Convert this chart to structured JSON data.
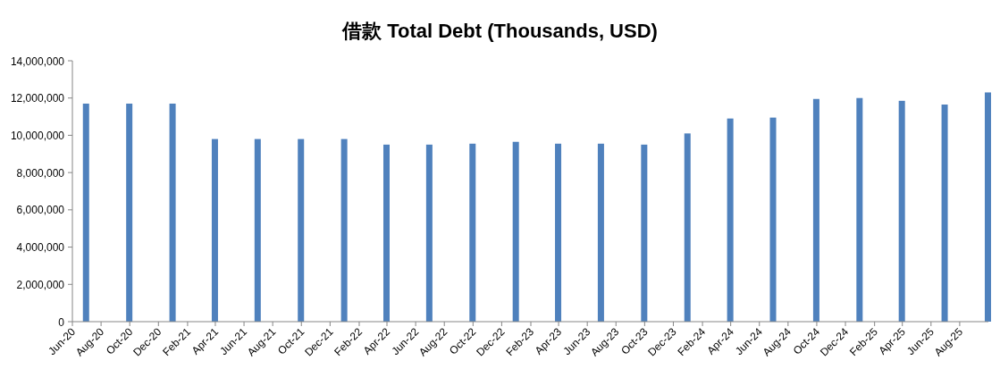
{
  "chart_data": {
    "type": "bar",
    "title": "借款 Total Debt (Thousands, USD)",
    "x": [
      "2020-06-30",
      "2020-09-30",
      "2020-12-31",
      "2021-03-31",
      "2021-06-30",
      "2021-09-30",
      "2021-12-31",
      "2022-03-31",
      "2022-06-30",
      "2022-09-30",
      "2022-12-31",
      "2023-03-31",
      "2023-06-30",
      "2023-09-30",
      "2023-12-31",
      "2024-03-31",
      "2024-06-30",
      "2024-09-30",
      "2024-12-31",
      "2025-03-31",
      "2025-06-30",
      "2025-09-30"
    ],
    "series": [
      {
        "color": "#4f81bd",
        "values": [
          11700000,
          11700000,
          11700000,
          9800000,
          9800000,
          9800000,
          9800000,
          9500000,
          9500000,
          9550000,
          9650000,
          9550000,
          9550000,
          9500000,
          10100000,
          10900000,
          10950000,
          11950000,
          12000000,
          11850000,
          11650000,
          12300000
        ]
      }
    ],
    "ylim": [
      0,
      14000000
    ],
    "yticks": [
      {
        "value": 0,
        "label": "0"
      },
      {
        "value": 2000000,
        "label": "2,000,000"
      },
      {
        "value": 4000000,
        "label": "4,000,000"
      },
      {
        "value": 6000000,
        "label": "6,000,000"
      },
      {
        "value": 8000000,
        "label": "8,000,000"
      },
      {
        "value": 10000000,
        "label": "10,000,000"
      },
      {
        "value": 12000000,
        "label": "12,000,000"
      },
      {
        "value": 14000000,
        "label": "14,000,000"
      }
    ],
    "xlim": [
      "2020-06-01",
      "2025-10-01"
    ],
    "xticks": [
      {
        "value": "2020-06-01",
        "label": "Jun-20"
      },
      {
        "value": "2020-08-01",
        "label": "Aug-20"
      },
      {
        "value": "2020-10-01",
        "label": "Oct-20"
      },
      {
        "value": "2020-12-01",
        "label": "Dec-20"
      },
      {
        "value": "2021-02-01",
        "label": "Feb-21"
      },
      {
        "value": "2021-04-01",
        "label": "Apr-21"
      },
      {
        "value": "2021-06-01",
        "label": "Jun-21"
      },
      {
        "value": "2021-08-01",
        "label": "Aug-21"
      },
      {
        "value": "2021-10-01",
        "label": "Oct-21"
      },
      {
        "value": "2021-12-01",
        "label": "Dec-21"
      },
      {
        "value": "2022-02-01",
        "label": "Feb-22"
      },
      {
        "value": "2022-04-01",
        "label": "Apr-22"
      },
      {
        "value": "2022-06-01",
        "label": "Jun-22"
      },
      {
        "value": "2022-08-01",
        "label": "Aug-22"
      },
      {
        "value": "2022-10-01",
        "label": "Oct-22"
      },
      {
        "value": "2022-12-01",
        "label": "Dec-22"
      },
      {
        "value": "2023-02-01",
        "label": "Feb-23"
      },
      {
        "value": "2023-04-01",
        "label": "Apr-23"
      },
      {
        "value": "2023-06-01",
        "label": "Jun-23"
      },
      {
        "value": "2023-08-01",
        "label": "Aug-23"
      },
      {
        "value": "2023-10-01",
        "label": "Oct-23"
      },
      {
        "value": "2023-12-01",
        "label": "Dec-23"
      },
      {
        "value": "2024-02-01",
        "label": "Feb-24"
      },
      {
        "value": "2024-04-01",
        "label": "Apr-24"
      },
      {
        "value": "2024-06-01",
        "label": "Jun-24"
      },
      {
        "value": "2024-08-01",
        "label": "Aug-24"
      },
      {
        "value": "2024-10-01",
        "label": "Oct-24"
      },
      {
        "value": "2024-12-01",
        "label": "Dec-24"
      },
      {
        "value": "2025-02-01",
        "label": "Feb-25"
      },
      {
        "value": "2025-04-01",
        "label": "Apr-25"
      },
      {
        "value": "2025-06-01",
        "label": "Jun-25"
      },
      {
        "value": "2025-08-01",
        "label": "Aug-25"
      }
    ]
  }
}
